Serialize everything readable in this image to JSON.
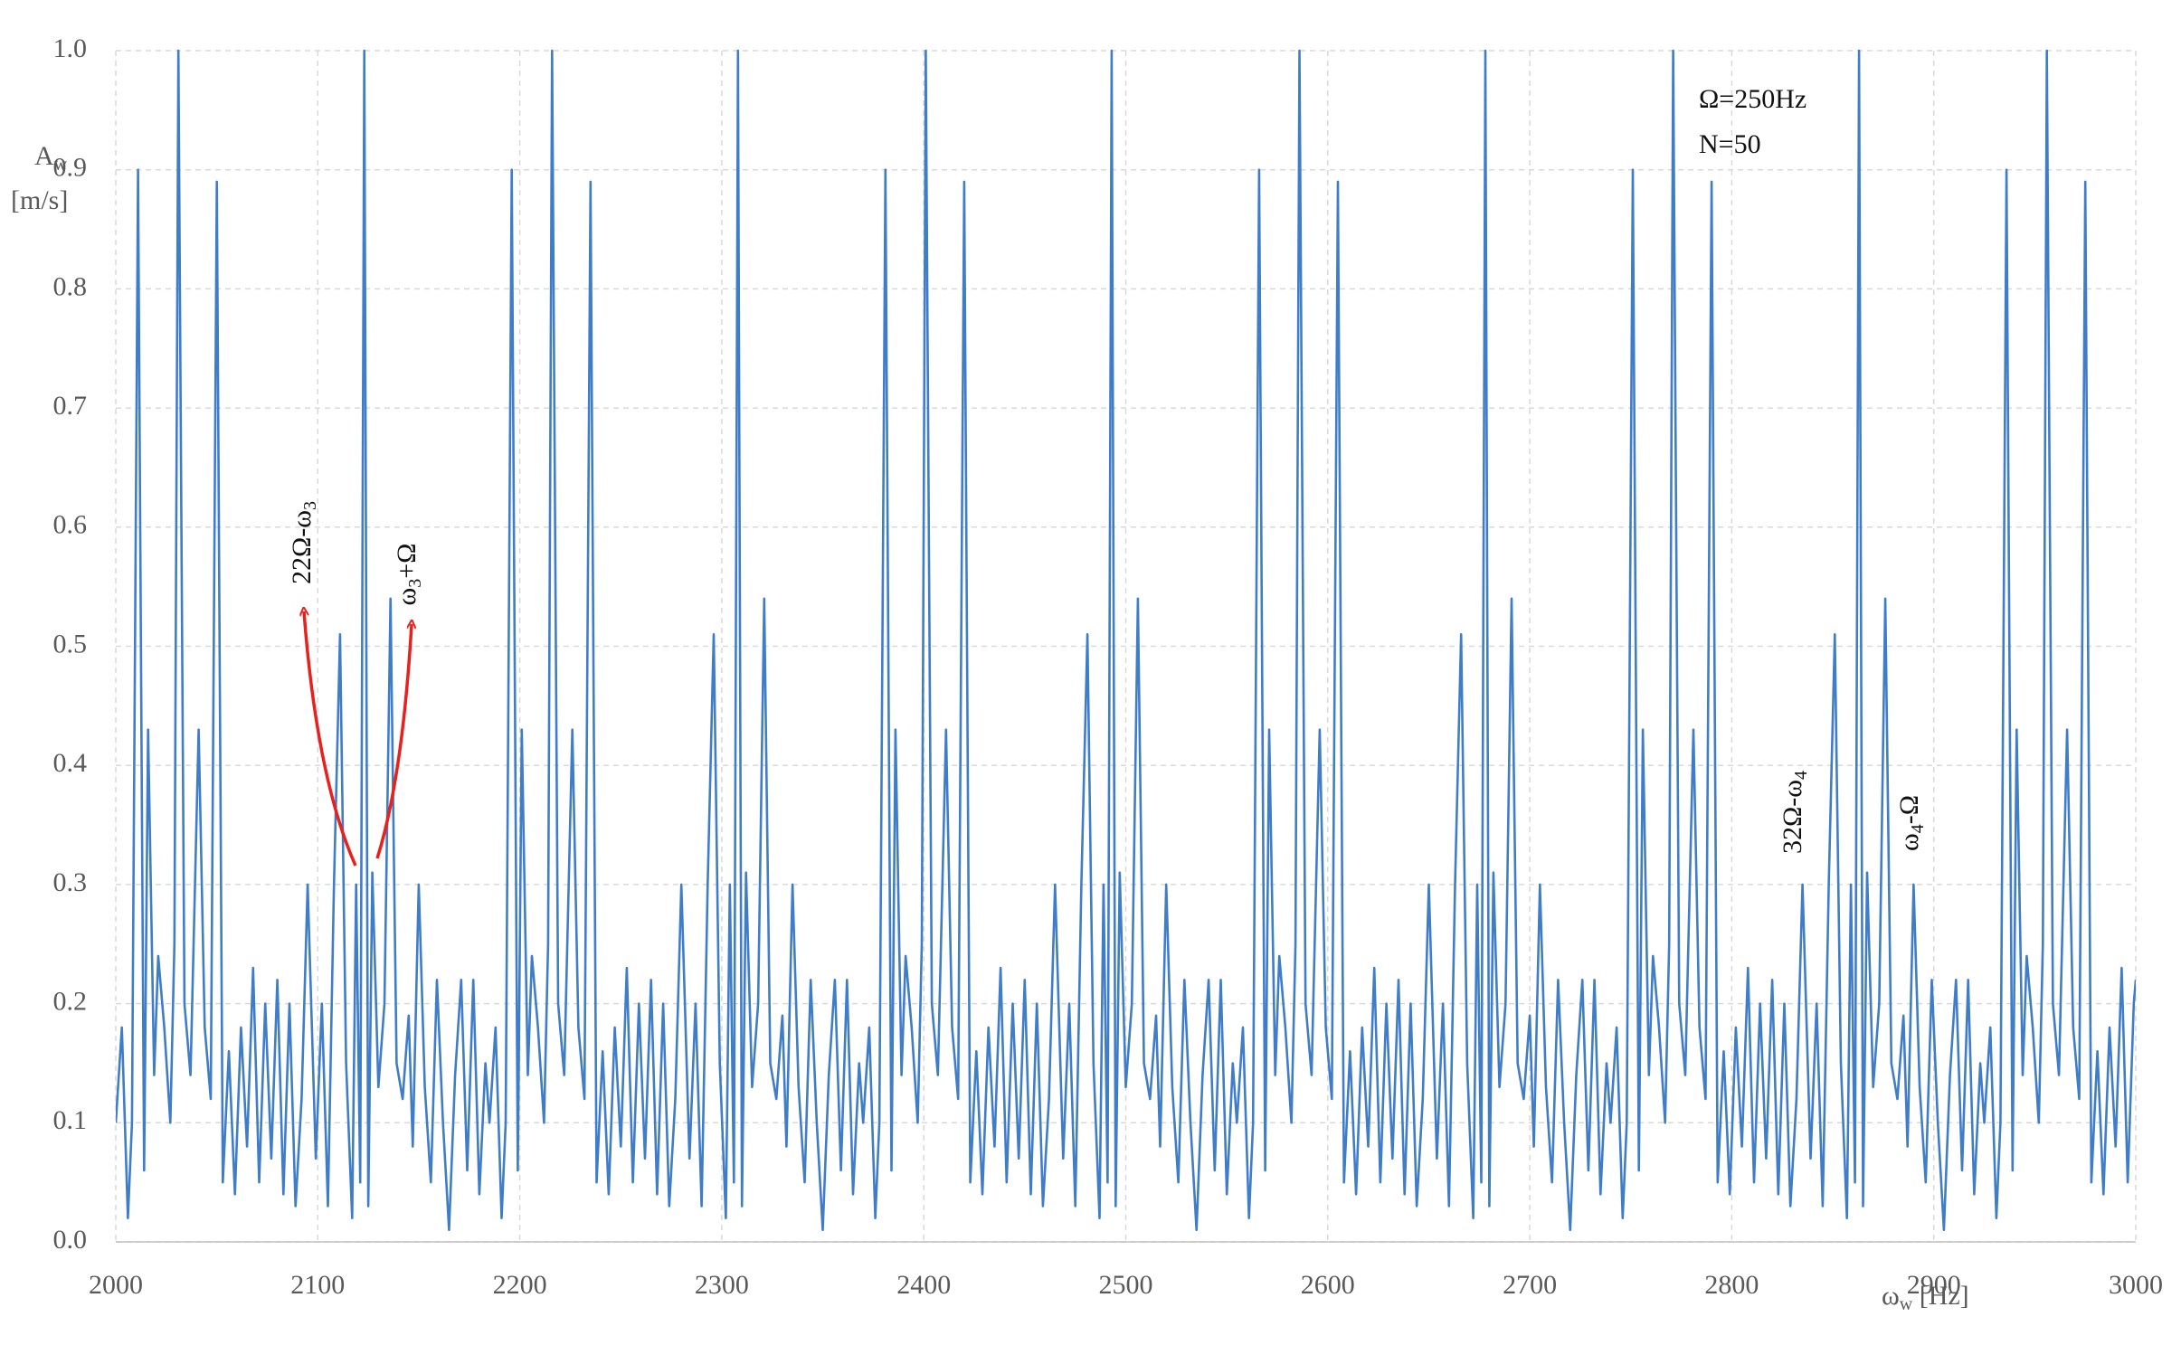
{
  "chart_data": {
    "type": "line",
    "x": [
      2000,
      2003,
      2006,
      2008,
      2011,
      2014,
      2016,
      2019,
      2021,
      2024,
      2027,
      2029,
      2031,
      2034,
      2037,
      2041,
      2044,
      2047,
      2050,
      2053,
      2056,
      2059,
      2062,
      2065,
      2068,
      2071,
      2074,
      2077,
      2080,
      2083,
      2086,
      2089,
      2092,
      2095,
      2099,
      2102,
      2105,
      2108,
      2111,
      2114,
      2117,
      2119,
      2121,
      2123,
      2125,
      2127,
      2130,
      2133,
      2136,
      2139,
      2142,
      2145,
      2147,
      2150,
      2153,
      2156,
      2159,
      2162,
      2165,
      2168,
      2171,
      2174,
      2177,
      2180,
      2183,
      2185,
      2188,
      2191,
      2193,
      2196,
      2199,
      2201,
      2204,
      2206,
      2209,
      2212,
      2214,
      2216,
      2219,
      2222,
      2226,
      2229,
      2232,
      2235,
      2238,
      2241,
      2244,
      2247,
      2250,
      2253,
      2256,
      2259,
      2262,
      2265,
      2268,
      2271,
      2274,
      2277,
      2280,
      2284,
      2287,
      2290,
      2293,
      2296,
      2299,
      2302,
      2304,
      2306,
      2308,
      2310,
      2312,
      2315,
      2318,
      2321,
      2324,
      2327,
      2330,
      2332,
      2335,
      2338,
      2341,
      2344,
      2347,
      2350,
      2353,
      2356,
      2359,
      2362,
      2365,
      2368,
      2370,
      2373,
      2376,
      2378,
      2381,
      2384,
      2386,
      2389,
      2391,
      2394,
      2397,
      2399,
      2401,
      2404,
      2407,
      2411,
      2414,
      2417,
      2420,
      2423,
      2426,
      2429,
      2432,
      2435,
      2438,
      2441,
      2444,
      2447,
      2450,
      2453,
      2456,
      2459,
      2462,
      2465,
      2469,
      2472,
      2475,
      2478,
      2481,
      2484,
      2487,
      2489,
      2491,
      2493,
      2495,
      2497,
      2500,
      2503,
      2506,
      2509,
      2512,
      2515,
      2517,
      2520,
      2523,
      2526,
      2529,
      2532,
      2535,
      2538,
      2541,
      2544,
      2547,
      2550,
      2553,
      2555,
      2558,
      2561,
      2563,
      2566,
      2569,
      2571,
      2574,
      2576,
      2579,
      2582,
      2584,
      2586,
      2589,
      2592,
      2596,
      2599,
      2602,
      2605,
      2608,
      2611,
      2614,
      2617,
      2620,
      2623,
      2626,
      2629,
      2632,
      2635,
      2638,
      2641,
      2644,
      2647,
      2650,
      2654,
      2657,
      2660,
      2663,
      2666,
      2669,
      2672,
      2674,
      2676,
      2678,
      2680,
      2682,
      2685,
      2688,
      2691,
      2694,
      2697,
      2700,
      2702,
      2705,
      2708,
      2711,
      2714,
      2717,
      2720,
      2723,
      2726,
      2729,
      2732,
      2735,
      2738,
      2740,
      2743,
      2746,
      2748,
      2751,
      2754,
      2756,
      2759,
      2761,
      2764,
      2767,
      2769,
      2771,
      2774,
      2777,
      2781,
      2784,
      2787,
      2790,
      2793,
      2796,
      2799,
      2802,
      2805,
      2808,
      2811,
      2814,
      2817,
      2820,
      2823,
      2826,
      2829,
      2832,
      2835,
      2839,
      2842,
      2845,
      2848,
      2851,
      2854,
      2857,
      2859,
      2861,
      2863,
      2865,
      2867,
      2870,
      2873,
      2876,
      2879,
      2882,
      2885,
      2887,
      2890,
      2893,
      2896,
      2899,
      2902,
      2905,
      2908,
      2911,
      2914,
      2917,
      2920,
      2923,
      2925,
      2928,
      2931,
      2933,
      2936,
      2939,
      2941,
      2944,
      2946,
      2949,
      2952,
      2954,
      2956,
      2959,
      2962,
      2966,
      2969,
      2972,
      2975,
      2978,
      2981,
      2984,
      2987,
      2990,
      2993,
      2996,
      2999,
      3000
    ],
    "values": [
      0.1,
      0.18,
      0.02,
      0.1,
      0.9,
      0.06,
      0.43,
      0.14,
      0.24,
      0.18,
      0.1,
      0.25,
      1.0,
      0.2,
      0.14,
      0.43,
      0.18,
      0.12,
      0.89,
      0.05,
      0.16,
      0.04,
      0.18,
      0.08,
      0.23,
      0.05,
      0.2,
      0.07,
      0.22,
      0.04,
      0.2,
      0.03,
      0.12,
      0.3,
      0.07,
      0.2,
      0.03,
      0.3,
      0.51,
      0.15,
      0.02,
      0.3,
      0.05,
      1.0,
      0.03,
      0.31,
      0.13,
      0.2,
      0.54,
      0.15,
      0.12,
      0.19,
      0.08,
      0.3,
      0.13,
      0.05,
      0.22,
      0.1,
      0.01,
      0.14,
      0.22,
      0.06,
      0.22,
      0.04,
      0.15,
      0.1,
      0.18,
      0.02,
      0.1,
      0.9,
      0.06,
      0.43,
      0.14,
      0.24,
      0.18,
      0.1,
      0.25,
      1.0,
      0.2,
      0.14,
      0.43,
      0.18,
      0.12,
      0.89,
      0.05,
      0.16,
      0.04,
      0.18,
      0.08,
      0.23,
      0.05,
      0.2,
      0.07,
      0.22,
      0.04,
      0.2,
      0.03,
      0.12,
      0.3,
      0.07,
      0.2,
      0.03,
      0.3,
      0.51,
      0.15,
      0.02,
      0.3,
      0.05,
      1.0,
      0.03,
      0.31,
      0.13,
      0.2,
      0.54,
      0.15,
      0.12,
      0.19,
      0.08,
      0.3,
      0.13,
      0.05,
      0.22,
      0.1,
      0.01,
      0.14,
      0.22,
      0.06,
      0.22,
      0.04,
      0.15,
      0.1,
      0.18,
      0.02,
      0.1,
      0.9,
      0.06,
      0.43,
      0.14,
      0.24,
      0.18,
      0.1,
      0.25,
      1.0,
      0.2,
      0.14,
      0.43,
      0.18,
      0.12,
      0.89,
      0.05,
      0.16,
      0.04,
      0.18,
      0.08,
      0.23,
      0.05,
      0.2,
      0.07,
      0.22,
      0.04,
      0.2,
      0.03,
      0.12,
      0.3,
      0.07,
      0.2,
      0.03,
      0.3,
      0.51,
      0.15,
      0.02,
      0.3,
      0.05,
      1.0,
      0.03,
      0.31,
      0.13,
      0.2,
      0.54,
      0.15,
      0.12,
      0.19,
      0.08,
      0.3,
      0.13,
      0.05,
      0.22,
      0.1,
      0.01,
      0.14,
      0.22,
      0.06,
      0.22,
      0.04,
      0.15,
      0.1,
      0.18,
      0.02,
      0.1,
      0.9,
      0.06,
      0.43,
      0.14,
      0.24,
      0.18,
      0.1,
      0.25,
      1.0,
      0.2,
      0.14,
      0.43,
      0.18,
      0.12,
      0.89,
      0.05,
      0.16,
      0.04,
      0.18,
      0.08,
      0.23,
      0.05,
      0.2,
      0.07,
      0.22,
      0.04,
      0.2,
      0.03,
      0.12,
      0.3,
      0.07,
      0.2,
      0.03,
      0.3,
      0.51,
      0.15,
      0.02,
      0.3,
      0.05,
      1.0,
      0.03,
      0.31,
      0.13,
      0.2,
      0.54,
      0.15,
      0.12,
      0.19,
      0.08,
      0.3,
      0.13,
      0.05,
      0.22,
      0.1,
      0.01,
      0.14,
      0.22,
      0.06,
      0.22,
      0.04,
      0.15,
      0.1,
      0.18,
      0.02,
      0.1,
      0.9,
      0.06,
      0.43,
      0.14,
      0.24,
      0.18,
      0.1,
      0.25,
      1.0,
      0.2,
      0.14,
      0.43,
      0.18,
      0.12,
      0.89,
      0.05,
      0.16,
      0.04,
      0.18,
      0.08,
      0.23,
      0.05,
      0.2,
      0.07,
      0.22,
      0.04,
      0.2,
      0.03,
      0.12,
      0.3,
      0.07,
      0.2,
      0.03,
      0.3,
      0.51,
      0.15,
      0.02,
      0.3,
      0.05,
      1.0,
      0.03,
      0.31,
      0.13,
      0.2,
      0.54,
      0.15,
      0.12,
      0.19,
      0.08,
      0.3,
      0.13,
      0.05,
      0.22,
      0.1,
      0.01,
      0.14,
      0.22,
      0.06,
      0.22,
      0.04,
      0.15,
      0.1,
      0.18,
      0.02,
      0.1,
      0.9,
      0.06,
      0.43,
      0.14,
      0.24,
      0.18,
      0.1,
      0.25,
      1.0,
      0.2,
      0.14,
      0.43,
      0.18,
      0.12,
      0.89,
      0.05,
      0.16,
      0.04,
      0.18,
      0.08,
      0.23,
      0.05,
      0.2,
      0.22
    ],
    "color": "#3f7dc8",
    "xlim": [
      2000,
      3000
    ],
    "xticks": [
      2000,
      2100,
      2200,
      2300,
      2400,
      2500,
      2600,
      2700,
      2800,
      2900,
      3000
    ],
    "ylim": [
      0,
      1
    ],
    "yticks": [
      {
        "value": 0,
        "label": "0.0"
      },
      0.1,
      0.2,
      0.3,
      0.4,
      0.5,
      0.6,
      0.7,
      0.8,
      0.9,
      {
        "value": 1,
        "label": "1.0"
      }
    ],
    "grid": true,
    "y_label": {
      "parts": [
        {
          "text": "A"
        },
        {
          "text": "w",
          "sub": true
        }
      ],
      "unit": "[m/s]"
    },
    "x_label": {
      "parts": [
        {
          "text": "ω"
        },
        {
          "text": "w",
          "sub": true
        },
        {
          "text": " [Hz]"
        }
      ]
    },
    "notes": [
      "Ω=250Hz",
      "N=50"
    ],
    "annotations": [
      {
        "parts": [
          {
            "text": "22Ω-ω"
          },
          {
            "text": "3",
            "sub": true
          }
        ]
      },
      {
        "parts": [
          {
            "text": "ω"
          },
          {
            "text": "3",
            "sub": true
          },
          {
            "text": "+Ω"
          }
        ]
      },
      {
        "parts": [
          {
            "text": "32Ω-ω"
          },
          {
            "text": "4",
            "sub": true
          }
        ]
      },
      {
        "parts": [
          {
            "text": "ω"
          },
          {
            "text": "4",
            "sub": true
          },
          {
            "text": "-Ω"
          }
        ]
      }
    ]
  }
}
